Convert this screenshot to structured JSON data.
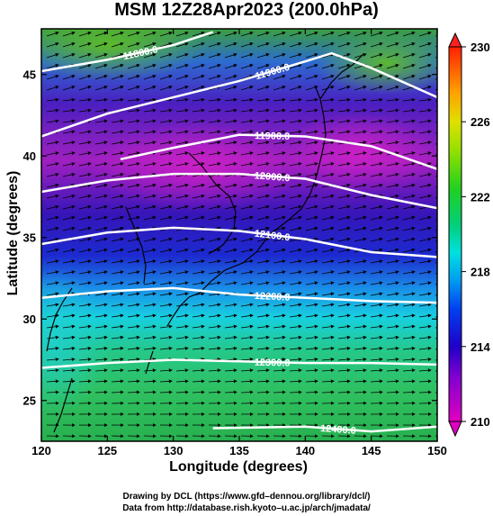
{
  "title": "MSM 12Z28Apr2023 (200.0hPa)",
  "x_axis": {
    "label": "Longitude (degrees)",
    "range": [
      120,
      150
    ],
    "ticks": [
      "120",
      "125",
      "130",
      "135",
      "140",
      "145",
      "150"
    ]
  },
  "y_axis": {
    "label": "Latitude  (degrees)",
    "range": [
      22.5,
      47.8
    ],
    "ticks": [
      "25",
      "30",
      "35",
      "40",
      "45"
    ]
  },
  "colorbar": {
    "range": [
      210,
      230
    ],
    "ticks": [
      "210",
      "214",
      "218",
      "222",
      "226",
      "230"
    ]
  },
  "contours": [
    {
      "label": "11800.0",
      "lat_at_lon": [
        [
          120,
          45.2
        ],
        [
          125,
          45.9
        ],
        [
          130,
          46.8
        ],
        [
          133,
          47.6
        ]
      ]
    },
    {
      "label": "11900.0",
      "lat_at_lon": [
        [
          120,
          41.2
        ],
        [
          125,
          42.6
        ],
        [
          130,
          43.6
        ],
        [
          135,
          44.6
        ],
        [
          140,
          45.8
        ],
        [
          142,
          46.3
        ],
        [
          145,
          45.4
        ],
        [
          150,
          43.6
        ]
      ]
    },
    {
      "label": "11900.0",
      "lat_at_lon": [
        [
          126,
          39.8
        ],
        [
          130,
          40.5
        ],
        [
          135,
          41.3
        ],
        [
          140,
          41.2
        ],
        [
          145,
          40.6
        ],
        [
          150,
          39.2
        ]
      ]
    },
    {
      "label": "12000.0",
      "lat_at_lon": [
        [
          120,
          37.8
        ],
        [
          125,
          38.5
        ],
        [
          130,
          38.9
        ],
        [
          135,
          38.9
        ],
        [
          140,
          38.6
        ],
        [
          145,
          37.6
        ],
        [
          150,
          36.8
        ]
      ]
    },
    {
      "label": "12100.0",
      "lat_at_lon": [
        [
          120,
          34.6
        ],
        [
          125,
          35.3
        ],
        [
          130,
          35.6
        ],
        [
          135,
          35.4
        ],
        [
          140,
          34.9
        ],
        [
          145,
          34.1
        ],
        [
          150,
          33.8
        ]
      ]
    },
    {
      "label": "12200.0",
      "lat_at_lon": [
        [
          120,
          31.3
        ],
        [
          125,
          31.7
        ],
        [
          130,
          31.9
        ],
        [
          135,
          31.5
        ],
        [
          140,
          31.3
        ],
        [
          145,
          31.1
        ],
        [
          150,
          31.0
        ]
      ]
    },
    {
      "label": "12300.0",
      "lat_at_lon": [
        [
          120,
          27.0
        ],
        [
          125,
          27.3
        ],
        [
          130,
          27.5
        ],
        [
          135,
          27.4
        ],
        [
          140,
          27.3
        ],
        [
          145,
          27.3
        ],
        [
          150,
          27.2
        ]
      ]
    },
    {
      "label": "12400.0",
      "lat_at_lon": [
        [
          133,
          23.3
        ],
        [
          140,
          23.4
        ],
        [
          145,
          23.1
        ],
        [
          150,
          23.4
        ]
      ]
    }
  ],
  "credits": {
    "line1": "Drawing by DCL (https://www.gfd–dennou.org/library/dcl/)",
    "line2": "Data from http://database.rish.kyoto–u.ac.jp/arch/jmadata/"
  }
}
